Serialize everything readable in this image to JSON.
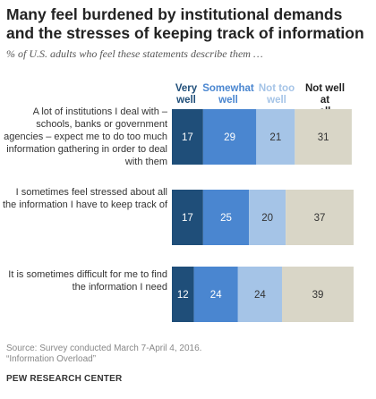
{
  "title": "Many feel burdened by institutional demands and the stresses of keeping track of information",
  "subtitle": "% of U.S. adults who feel these statements describe them …",
  "legend": [
    {
      "label": "Very well",
      "color": "#1f4e79"
    },
    {
      "label": "Somewhat well",
      "color": "#4a86d0"
    },
    {
      "label": "Not too well",
      "color": "#a5c4e7"
    },
    {
      "label": "Not well at all",
      "color": "#222222"
    }
  ],
  "colors": {
    "very_well": "#1f4e79",
    "somewhat_well": "#4a86d0",
    "not_too_well": "#a5c4e7",
    "not_well_at_all": "#d9d6c7"
  },
  "chart_data": {
    "type": "bar",
    "orientation": "horizontal",
    "stacked": true,
    "categories": [
      "A lot of institutions I deal with – schools, banks or government agencies – expect me to do too much information gathering in order to deal with them",
      "I sometimes feel stressed about all the information I have to keep track of",
      "It is sometimes difficult for me to find the information I need"
    ],
    "series": [
      {
        "name": "Very well",
        "values": [
          17,
          17,
          12
        ]
      },
      {
        "name": "Somewhat well",
        "values": [
          29,
          25,
          24
        ]
      },
      {
        "name": "Not too well",
        "values": [
          21,
          20,
          24
        ]
      },
      {
        "name": "Not well at all",
        "values": [
          31,
          37,
          39
        ]
      }
    ],
    "legend_position": "top",
    "grid": false
  },
  "source": "Source: Survey conducted March 7-April 4, 2016.",
  "report": "“Information Overload”",
  "organization": "PEW RESEARCH CENTER"
}
